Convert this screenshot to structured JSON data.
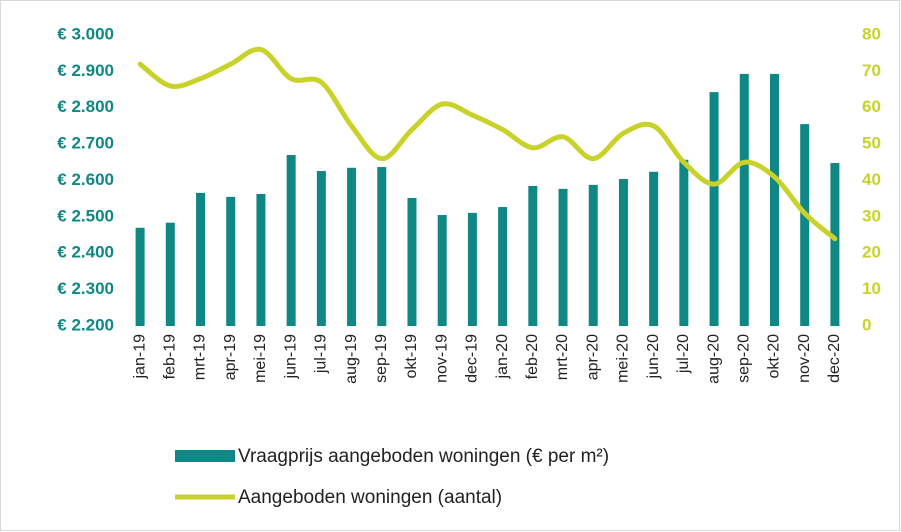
{
  "chart_data": {
    "type": "bar-line",
    "categories": [
      "jan-19",
      "feb-19",
      "mrt-19",
      "apr-19",
      "mei-19",
      "jun-19",
      "jul-19",
      "aug-19",
      "sep-19",
      "okt-19",
      "nov-19",
      "dec-19",
      "jan-20",
      "feb-20",
      "mrt-20",
      "apr-20",
      "mei-20",
      "jun-20",
      "jul-20",
      "aug-20",
      "sep-20",
      "okt-20",
      "nov-20",
      "dec-20"
    ],
    "series": [
      {
        "name": "Vraagprijs aangeboden woningen (€ per m²)",
        "type": "bar",
        "color": "#0f8784",
        "values": [
          2470,
          2484,
          2566,
          2555,
          2563,
          2670,
          2626,
          2635,
          2637,
          2552,
          2505,
          2511,
          2527,
          2585,
          2577,
          2588,
          2604,
          2624,
          2657,
          2843,
          2893,
          2893,
          2755,
          2648
        ]
      },
      {
        "name": "Aangeboden woningen (aantal)",
        "type": "line",
        "axis": "y2",
        "color": "#c9d22a",
        "values": [
          72,
          66,
          68,
          72,
          76,
          68,
          67,
          55,
          46,
          54,
          61,
          58,
          54,
          49,
          52,
          46,
          53,
          55,
          45,
          39,
          45,
          41,
          31,
          24
        ]
      }
    ],
    "ylim": [
      2200,
      3000
    ],
    "yticks": [
      {
        "value": 2200,
        "label": "€ 2.200"
      },
      {
        "value": 2300,
        "label": "€ 2.300"
      },
      {
        "value": 2400,
        "label": "€ 2.400"
      },
      {
        "value": 2500,
        "label": "€ 2.500"
      },
      {
        "value": 2600,
        "label": "€ 2.600"
      },
      {
        "value": 2700,
        "label": "€ 2.700"
      },
      {
        "value": 2800,
        "label": "€ 2.800"
      },
      {
        "value": 2900,
        "label": "€ 2.900"
      },
      {
        "value": 3000,
        "label": "€ 3.000"
      }
    ],
    "y2lim": [
      0,
      80
    ],
    "y2ticks": [
      0,
      10,
      20,
      30,
      40,
      50,
      60,
      70,
      80
    ],
    "grid": false,
    "legend": "bottom"
  }
}
